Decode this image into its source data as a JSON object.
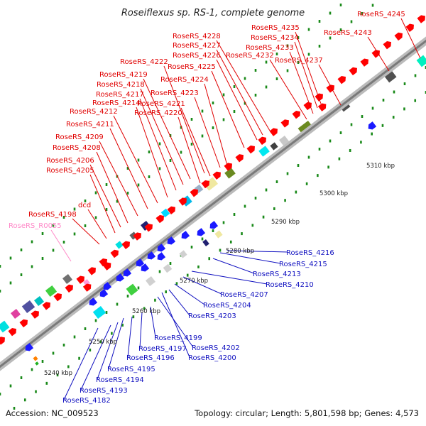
{
  "title": "Roseiflexus sp. RS-1, complete genome",
  "accession": "Accession: NC_009523",
  "summary": "Topology: circular; Length: 5,801,598 bp; Genes: 4,573",
  "colors": {
    "forward_label": "#e00000",
    "reverse_label": "#1010c0",
    "rna_label": "#ff88c8",
    "forward_arrow": "#ff0000",
    "reverse_arrow": "#1a1aff",
    "backbone": "#9a9a9a",
    "tick_dot": "#1a8a1a"
  },
  "ticks": [
    "5240 kbp",
    "5250 kbp",
    "5260 kbp",
    "5270 kbp",
    "5280 kbp",
    "5290 kbp",
    "5300 kbp",
    "5310 kbp"
  ],
  "forward_labels": [
    "RoseRS_4245",
    "RoseRS_4243",
    "RoseRS_4235",
    "RoseRS_4234",
    "RoseRS_4233",
    "RoseRS_4232",
    "RoseRS_4237",
    "RoseRS_4228",
    "RoseRS_4227",
    "RoseRS_4226",
    "RoseRS_4225",
    "RoseRS_4224",
    "RoseRS_4222",
    "RoseRS_4219",
    "RoseRS_4218",
    "RoseRS_4217",
    "RoseRS_4223",
    "RoseRS_4214",
    "RoseRS_4221",
    "RoseRS_4212",
    "RoseRS_4220",
    "RoseRS_4211",
    "RoseRS_4209",
    "RoseRS_4208",
    "RoseRS_4206",
    "RoseRS_4205",
    "dcd",
    "RoseRS_4198"
  ],
  "rna_labels": [
    "RoseRS_R0055"
  ],
  "reverse_labels": [
    "RoseRS_4216",
    "RoseRS_4215",
    "RoseRS_4213",
    "RoseRS_4210",
    "RoseRS_4207",
    "RoseRS_4204",
    "RoseRS_4203",
    "RoseRS_4199",
    "RoseRS_4202",
    "RoseRS_4197",
    "RoseRS_4200",
    "RoseRS_4196",
    "RoseRS_4195",
    "RoseRS_4194",
    "RoseRS_4193",
    "RoseRS_4182"
  ]
}
